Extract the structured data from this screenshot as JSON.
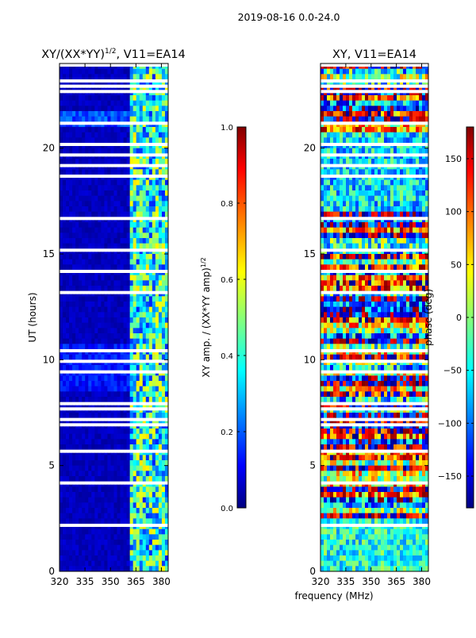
{
  "suptitle": "2019-08-16 0.0-24.0",
  "colors": {
    "jet": [
      "#000080",
      "#0000ff",
      "#00ffff",
      "#ffff00",
      "#ff0000",
      "#800000"
    ]
  },
  "chart_data": [
    {
      "type": "heatmap",
      "title_main": "XY/(XX*YY)",
      "title_sup": "1/2",
      "title_rest": ", V11=EA14",
      "xlabel": "",
      "ylabel": "UT (hours)",
      "xlim": [
        320,
        384
      ],
      "ylim": [
        0,
        24
      ],
      "xticks": [
        320,
        335,
        350,
        365,
        380
      ],
      "yticks": [
        0,
        5,
        10,
        15,
        20
      ],
      "bright_freq_range_mhz": [
        362,
        384
      ],
      "colorbar": {
        "label_main": "XY amp. / (XX*YY amp)",
        "label_sup": "1/2",
        "min": 0.0,
        "max": 1.0,
        "ticks": [
          "0.0",
          "0.2",
          "0.4",
          "0.6",
          "0.8",
          "1.0"
        ],
        "tick_values": [
          0,
          0.2,
          0.4,
          0.6,
          0.8,
          1.0
        ]
      }
    },
    {
      "type": "heatmap",
      "title_main": "XY, V11=EA14",
      "title_sup": "",
      "title_rest": "",
      "xlabel": "frequency (MHz)",
      "ylabel": "",
      "xlim": [
        320,
        384
      ],
      "ylim": [
        0,
        24
      ],
      "xticks": [
        320,
        335,
        350,
        365,
        380
      ],
      "yticks": [
        0,
        5,
        10,
        15,
        20
      ],
      "colorbar": {
        "label_main": "phase (deg)",
        "label_sup": "",
        "min": -180,
        "max": 180,
        "ticks": [
          "−150",
          "−100",
          "−50",
          "0",
          "50",
          "100",
          "150"
        ],
        "tick_values": [
          -150,
          -100,
          -50,
          0,
          50,
          100,
          150
        ]
      }
    }
  ]
}
